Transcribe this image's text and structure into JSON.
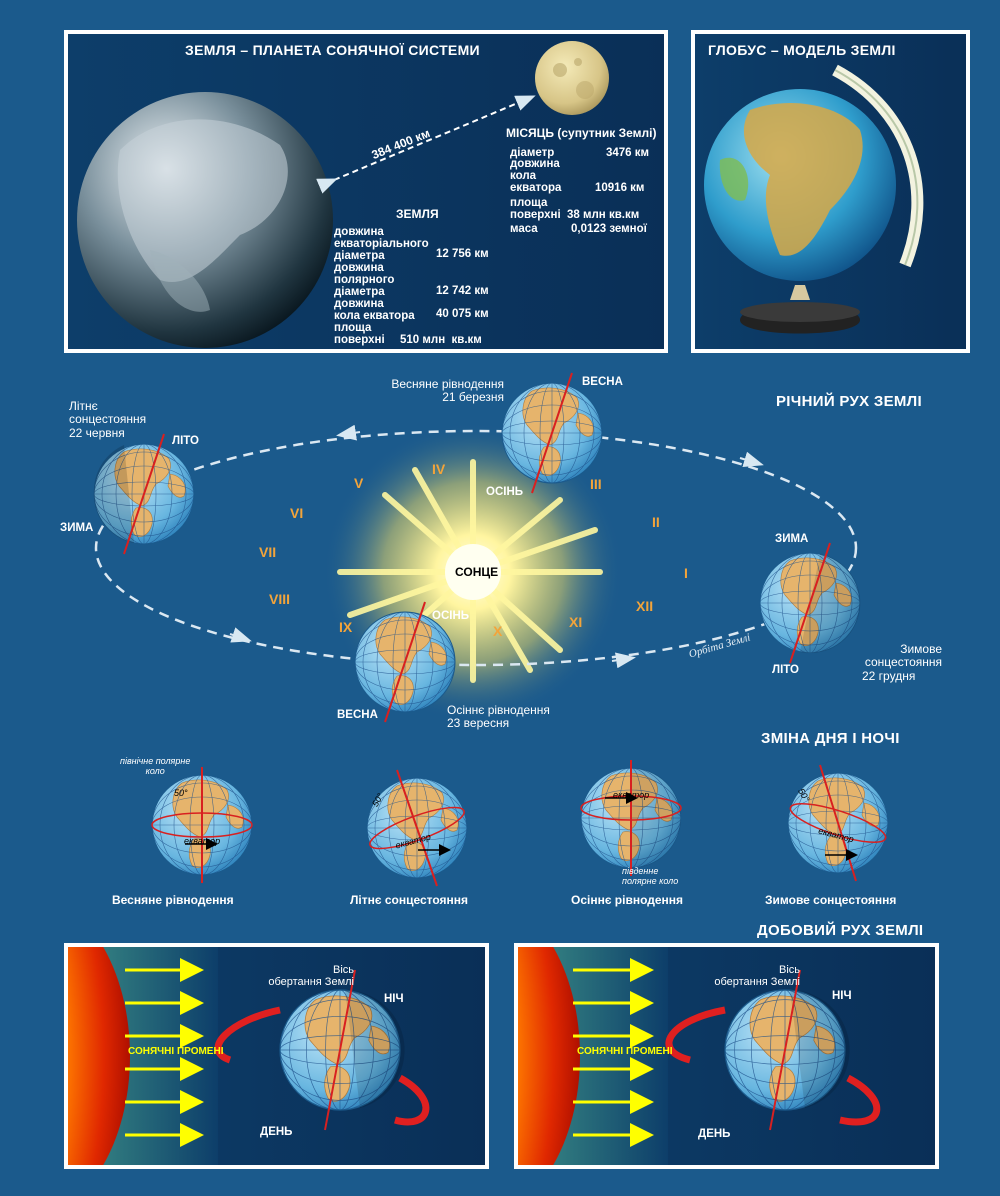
{
  "top_left": {
    "title": "ЗЕМЛЯ – ПЛАНЕТА СОНЯЧНОЇ СИСТЕМИ",
    "distance": "384 400 км",
    "moon": {
      "heading": "МІСЯЦЬ (супутник Землі)",
      "rows": [
        {
          "label": "діаметр",
          "value": "3476 км"
        },
        {
          "label": "довжина\nкола\nекватора",
          "value": "10916 км"
        },
        {
          "label": "площа\nповерхні",
          "value": "38 млн кв.км"
        },
        {
          "label": "маса",
          "value": "0,0123 земної"
        }
      ]
    },
    "earth": {
      "heading": "ЗЕМЛЯ",
      "rows": [
        {
          "label": "довжина\nекваторіального\nдіаметра",
          "value": "12 756 км"
        },
        {
          "label": "довжина\nполярного\nдіаметра",
          "value": "12 742 км"
        },
        {
          "label": "довжина\nкола екватора",
          "value": "40 075 км"
        },
        {
          "label": "площа\nповерхні",
          "value": "510 млн  кв.км"
        }
      ]
    }
  },
  "top_right": {
    "title": "ГЛОБУС – МОДЕЛЬ ЗЕМЛІ"
  },
  "orbit": {
    "title": "РІЧНИЙ РУХ ЗЕМЛІ",
    "sun": "СОНЦЕ",
    "orbit_label": "Орбіта Землі",
    "spring": {
      "title": "Весняне рівнодення",
      "date": "21 березня",
      "top": "ВЕСНА",
      "bottom": "ОСІНЬ"
    },
    "summer": {
      "title": "Літнє\nсонцестояння",
      "date": "22 червня",
      "top": "ЛІТО",
      "bottom": "ЗИМА"
    },
    "autumn": {
      "title": "Осіннє рівнодення",
      "date": "23 вересня",
      "top": "ОСІНЬ",
      "bottom": "ВЕСНА"
    },
    "winter": {
      "title": "Зимове\nсонцестояння",
      "date": "22 грудня",
      "top": "ЗИМА",
      "bottom": "ЛІТО"
    },
    "months": [
      "I",
      "II",
      "III",
      "IV",
      "V",
      "VI",
      "VII",
      "VIII",
      "IX",
      "X",
      "XI",
      "XII"
    ]
  },
  "day_night": {
    "title": "ЗМІНА ДНЯ І НОЧІ",
    "north_circle": "північне полярне\nколо",
    "south_circle": "південне\nполярне коло",
    "equator": "екватор",
    "lat": "50°",
    "captions": [
      "Весняне рівнодення",
      "Літнє сонцестояння",
      "Осіннє рівнодення",
      "Зимове сонцестояння"
    ]
  },
  "daily": {
    "title": "ДОБОВИЙ РУХ ЗЕМЛІ",
    "rays": "СОНЯЧНІ ПРОМЕНІ",
    "axis": "Вісь\nобертання Землі",
    "night": "НІЧ",
    "day": "ДЕНЬ"
  },
  "colors": {
    "background": "#1b5a8c",
    "land": "#e6b46c",
    "ocean": "#68b6e0",
    "accent": "#f3a43a"
  }
}
